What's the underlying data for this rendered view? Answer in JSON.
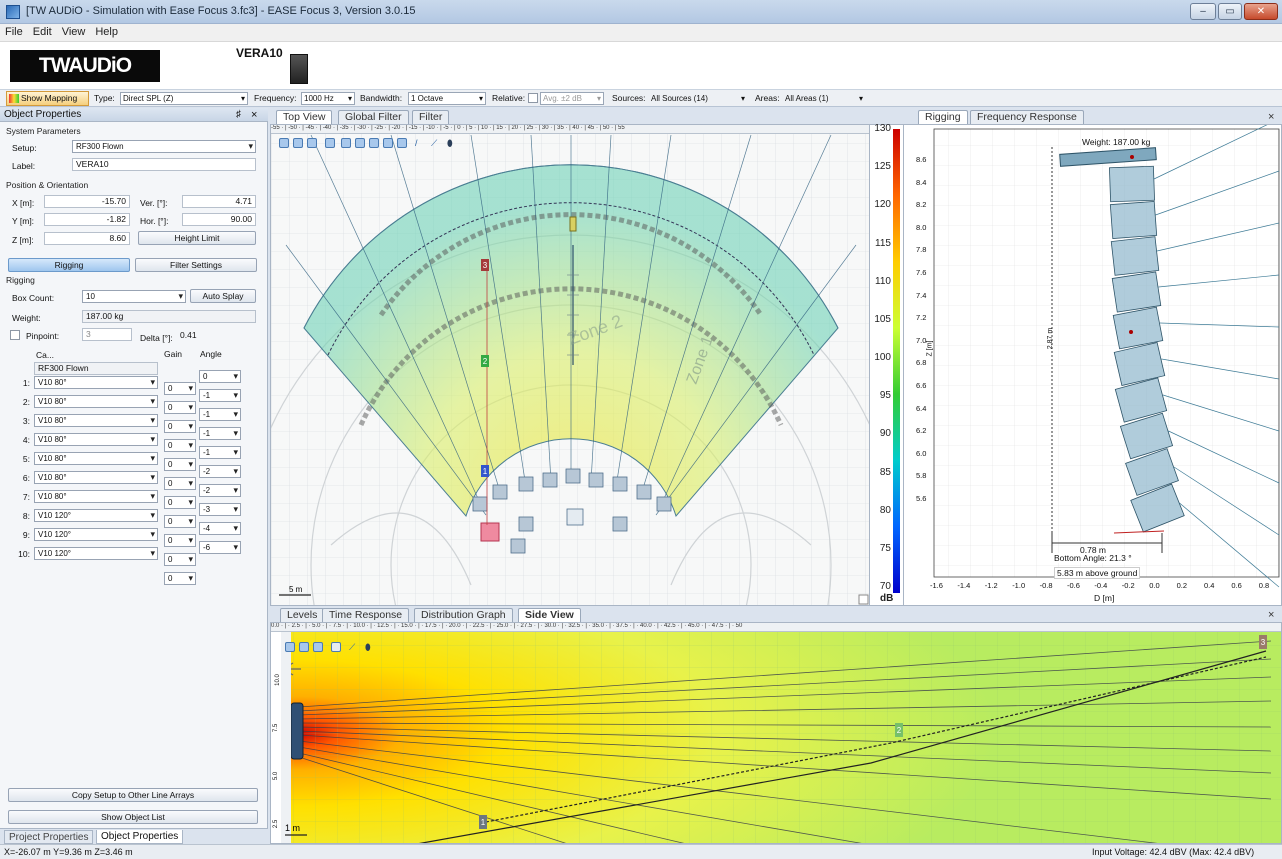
{
  "window": {
    "title": "[TW AUDiO - Simulation with Ease Focus 3.fc3] - EASE Focus 3, Version 3.0.15"
  },
  "menu": [
    "File",
    "Edit",
    "View",
    "Help"
  ],
  "header": {
    "logo_text": "TWAUDiO",
    "model": "VERA10"
  },
  "toolbar": {
    "show_mapping": "Show Mapping",
    "type_label": "Type:",
    "type_value": "Direct SPL (Z)",
    "frequency_label": "Frequency:",
    "frequency_value": "1000 Hz",
    "bandwidth_label": "Bandwidth:",
    "bandwidth_value": "1 Octave",
    "relative_label": "Relative:",
    "relative_value": "Avg. ±2 dB",
    "sources_label": "Sources:",
    "sources_value": "All Sources (14)",
    "areas_label": "Areas:",
    "areas_value": "All Areas (1)"
  },
  "object_properties": {
    "title": "Object Properties",
    "pin": "♯",
    "close": "×",
    "system_parameters": "System Parameters",
    "setup_label": "Setup:",
    "setup_value": "RF300 Flown",
    "label_label": "Label:",
    "label_value": "VERA10",
    "position_orientation": "Position & Orientation",
    "x_label": "X [m]:",
    "x_value": "-15.70",
    "y_label": "Y [m]:",
    "y_value": "-1.82",
    "z_label": "Z [m]:",
    "z_value": "8.60",
    "ver_label": "Ver. [°]:",
    "ver_value": "4.71",
    "hor_label": "Hor. [°]:",
    "hor_value": "90.00",
    "height_limit": "Height Limit",
    "tab_rigging": "Rigging",
    "tab_filter": "Filter Settings",
    "rigging": "Rigging",
    "box_count_label": "Box Count:",
    "box_count_value": "10",
    "auto_splay": "Auto Splay",
    "weight_label": "Weight:",
    "weight_value": "187.00 kg",
    "pinpoint_label": "Pinpoint:",
    "pinpoint_value": "3",
    "delta_label": "Delta [°]:",
    "delta_value": "0.41",
    "col_cab": "Ca...",
    "col_gain": "Gain",
    "col_angle": "Angle",
    "frame": "RF300 Flown",
    "cabinets": [
      {
        "n": "1:",
        "cab": "V10 80°",
        "gain": "0",
        "angle": "-1"
      },
      {
        "n": "2:",
        "cab": "V10 80°",
        "gain": "0",
        "angle": "-1"
      },
      {
        "n": "3:",
        "cab": "V10 80°",
        "gain": "0",
        "angle": "-1"
      },
      {
        "n": "4:",
        "cab": "V10 80°",
        "gain": "0",
        "angle": "-1"
      },
      {
        "n": "5:",
        "cab": "V10 80°",
        "gain": "0",
        "angle": "-2"
      },
      {
        "n": "6:",
        "cab": "V10 80°",
        "gain": "0",
        "angle": "-2"
      },
      {
        "n": "7:",
        "cab": "V10 80°",
        "gain": "0",
        "angle": "-3"
      },
      {
        "n": "8:",
        "cab": "V10 120°",
        "gain": "0",
        "angle": "-4"
      },
      {
        "n": "9:",
        "cab": "V10 120°",
        "gain": "0",
        "angle": "-6"
      },
      {
        "n": "10:",
        "cab": "V10 120°",
        "gain": "0",
        "angle": ""
      }
    ],
    "first_angle": "0",
    "last_gain": "0",
    "copy_setup": "Copy Setup to Other Line Arrays",
    "show_object_list": "Show Object List",
    "bottom_tab_project": "Project Properties",
    "bottom_tab_object": "Object Properties"
  },
  "top_tabs": [
    "Top View",
    "Global Filter",
    "Filter"
  ],
  "top_view": {
    "ruler": "-55 · | -50 · | -45 · | -40 · | -35 · | -30 · | -25 · | -20 · | -15 · | -10 · | -5 · | 0 · | 5 · | 10 · | 15 · | 20 · | 25 · | 30 · | 35 · | 40 · | 45 · | 50 · | 55",
    "scale": "5 m",
    "zone1": "Zone 1",
    "zone2": "Zone 2",
    "source_labels": [
      "1",
      "2",
      "3"
    ]
  },
  "colorbar": {
    "ticks": [
      "130",
      "125",
      "120",
      "115",
      "110",
      "105",
      "100",
      "95",
      "90",
      "85",
      "80",
      "75",
      "70"
    ],
    "unit": "dB",
    "colors": [
      "#cc0000",
      "#ff6600",
      "#ffcc00",
      "#ccff33",
      "#33cc33",
      "#00cccc",
      "#0066ff",
      "#0000cc"
    ]
  },
  "right_tabs": [
    "Rigging",
    "Frequency Response"
  ],
  "rigging_view": {
    "weight": "Weight: 187.00 kg",
    "height_dim": "2.87 m",
    "width_dim": "0.78 m",
    "bottom_angle": "Bottom Angle: 21.3 °",
    "above_ground": "5.83 m above ground",
    "y_ticks": [
      "8.6",
      "8.4",
      "8.2",
      "8.0",
      "7.8",
      "7.6",
      "7.4",
      "7.2",
      "7.0",
      "6.8",
      "6.6",
      "6.4",
      "6.2",
      "6.0",
      "5.8",
      "5.6"
    ],
    "x_ticks": [
      "-1.6",
      "-1.4",
      "-1.2",
      "-1.0",
      "-0.8",
      "-0.6",
      "-0.4",
      "-0.2",
      "0.0",
      "0.2",
      "0.4",
      "0.6",
      "0.8"
    ],
    "y_axis": "Z [m]",
    "x_axis": "D [m]"
  },
  "bottom_tabs": [
    "Levels",
    "Time Response",
    "Distribution Graph",
    "Side View"
  ],
  "side_view": {
    "ruler": "0.0 · | · 2.5 · | · 5.0 · | · 7.5 · | · 10.0 · | · 12.5 · | · 15.0 · | · 17.5 · | · 20.0 · | · 22.5 · | · 25.0 · | · 27.5 · | · 30.0 · | · 32.5 · | · 35.0 · | · 37.5 · | · 40.0 · | · 42.5 · | · 45.0 · | · 47.5 · | · 50",
    "vruler": [
      "10.0",
      "7.5",
      "5.0",
      "2.5"
    ],
    "scale": "1 m",
    "source_labels": [
      "1",
      "2",
      "3"
    ]
  },
  "status": {
    "coords": "X=-26.07 m Y=9.36 m Z=3.46 m",
    "voltage": "Input Voltage: 42.4 dBV (Max: 42.4 dBV)"
  }
}
